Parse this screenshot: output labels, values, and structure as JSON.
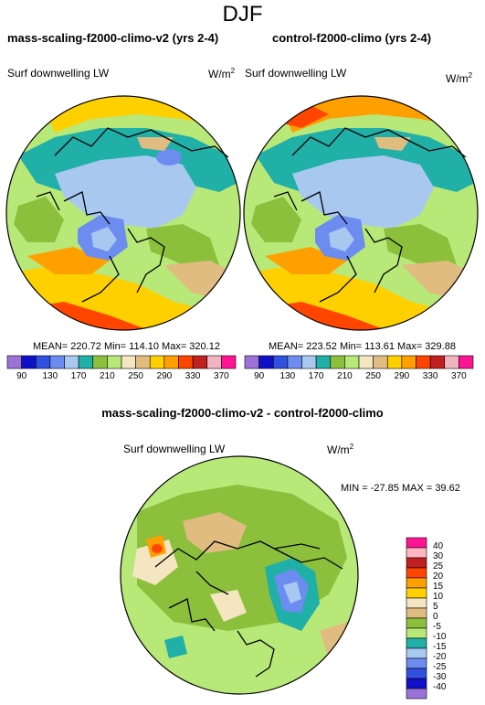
{
  "page_title": "DJF",
  "diff_title": "mass-scaling-f2000-climo-v2 - control-f2000-climo",
  "panels": [
    {
      "title": "mass-scaling-f2000-climo-v2 (yrs 2-4)",
      "field": "Surf downwelling LW",
      "units": "W/m",
      "units_sup": "2",
      "stats": "MEAN= 220.72  Min= 114.10  Max= 320.12"
    },
    {
      "title": "control-f2000-climo (yrs 2-4)",
      "field": "Surf downwelling LW",
      "units": "W/m",
      "units_sup": "2",
      "stats": "MEAN= 223.52  Min= 113.61  Max= 329.88"
    }
  ],
  "diff_panel": {
    "field": "Surf downwelling LW",
    "units": "W/m",
    "units_sup": "2",
    "stats": "MIN = -27.85 MAX =  39.62"
  },
  "colorbar_top": {
    "colors": [
      "#9a72d8",
      "#1010c8",
      "#3050e0",
      "#6c8cf0",
      "#a8c8f0",
      "#20b0a8",
      "#8cbf3c",
      "#b8e878",
      "#f4e6c0",
      "#e0bc80",
      "#ffd000",
      "#ffa000",
      "#ff4500",
      "#c02020",
      "#f0b4c0",
      "#ff1493"
    ],
    "labels": [
      "90",
      "130",
      "170",
      "210",
      "250",
      "290",
      "330",
      "370"
    ]
  },
  "colorbar_diff": {
    "colors_top_to_bottom": [
      "#ff1493",
      "#ffb6c1",
      "#c02020",
      "#ff4500",
      "#ffa000",
      "#ffd000",
      "#f4e6c0",
      "#e0bc80",
      "#8cbf3c",
      "#b8e878",
      "#20b0a8",
      "#a8c8f0",
      "#6c8cf0",
      "#3050e0",
      "#1010c8",
      "#9a72d8"
    ],
    "labels": [
      "40",
      "30",
      "25",
      "20",
      "15",
      "10",
      "5",
      "0",
      "-5",
      "-10",
      "-15",
      "-20",
      "-25",
      "-30",
      "-40"
    ]
  }
}
